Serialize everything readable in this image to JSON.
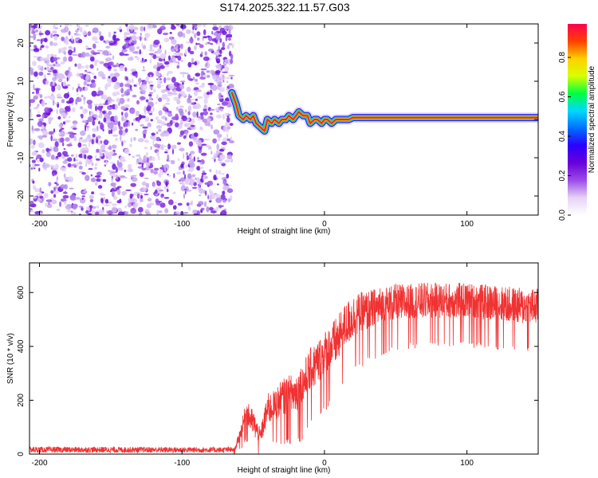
{
  "title": "S174.2025.322.11.57.G03",
  "chart_data": [
    {
      "type": "heatmap",
      "xlabel": "Height of straight line (km)",
      "ylabel": "Frequency (Hz)",
      "xlim": [
        -207,
        150
      ],
      "ylim": [
        -25,
        25
      ],
      "xticks": [
        -200,
        -100,
        0,
        100
      ],
      "yticks": [
        -20,
        -10,
        0,
        10,
        20
      ],
      "noise_region_x": [
        -207,
        -65
      ],
      "ridge": {
        "x": [
          -65,
          -62,
          -60,
          -57,
          -55,
          -52,
          -50,
          -48,
          -45,
          -42,
          -40,
          -37,
          -35,
          -32,
          -30,
          -27,
          -25,
          -22,
          -20,
          -18,
          -15,
          -12,
          -10,
          -7,
          -5,
          -2,
          0,
          2,
          5,
          8,
          10,
          13,
          15,
          17,
          20,
          30,
          50,
          80,
          100,
          120,
          150
        ],
        "y": [
          7,
          4,
          1,
          0,
          1,
          0,
          1,
          -1,
          -2,
          -3,
          0,
          -1,
          0,
          -1,
          0,
          0,
          1,
          0,
          1,
          2,
          1,
          1,
          -1,
          0,
          0,
          -1,
          0,
          0,
          -1,
          0,
          0,
          0,
          0,
          0,
          0.5,
          0.5,
          0.5,
          0.5,
          0.5,
          0.5,
          0.5
        ]
      },
      "colorbar": {
        "label": "Normalized spectral amplitude",
        "ticks": [
          "0.0",
          "0.2",
          "0.4",
          "0.6",
          "0.8"
        ],
        "tick_values": [
          0.0,
          0.2,
          0.4,
          0.6,
          0.8
        ],
        "range": [
          0,
          0.97
        ],
        "colors": [
          "#ffffff",
          "#e6d2f5",
          "#9b4ce8",
          "#6a00d8",
          "#2b00ff",
          "#0070ff",
          "#00d8ff",
          "#00ff40",
          "#d8ff00",
          "#ffd000",
          "#ff4000",
          "#ff0050"
        ]
      }
    },
    {
      "type": "line",
      "xlabel": "Height of straight line (km)",
      "ylabel": "SNR (10 * v/v)",
      "xlim": [
        -207,
        150
      ],
      "ylim": [
        0,
        710
      ],
      "xticks": [
        -200,
        -100,
        0,
        100
      ],
      "yticks": [
        0,
        200,
        400,
        600
      ],
      "series": [
        {
          "name": "SNR",
          "color": "#f03232",
          "x": [
            -207,
            -150,
            -100,
            -70,
            -63,
            -58,
            -55,
            -50,
            -45,
            -40,
            -35,
            -30,
            -25,
            -20,
            -15,
            -10,
            -5,
            0,
            5,
            10,
            15,
            20,
            30,
            40,
            50,
            60,
            70,
            80,
            90,
            100,
            110,
            120,
            130,
            140,
            150
          ],
          "base": [
            15,
            15,
            14,
            14,
            15,
            90,
            150,
            110,
            60,
            160,
            170,
            200,
            210,
            220,
            250,
            300,
            330,
            360,
            390,
            420,
            470,
            500,
            520,
            540,
            550,
            555,
            560,
            560,
            560,
            560,
            555,
            550,
            545,
            540,
            540
          ],
          "amplitude": [
            12,
            12,
            12,
            12,
            15,
            60,
            90,
            100,
            60,
            120,
            120,
            140,
            150,
            160,
            170,
            170,
            170,
            180,
            180,
            180,
            170,
            170,
            160,
            150,
            150,
            140,
            140,
            140,
            140,
            140,
            140,
            140,
            140,
            140,
            140
          ]
        }
      ]
    }
  ]
}
